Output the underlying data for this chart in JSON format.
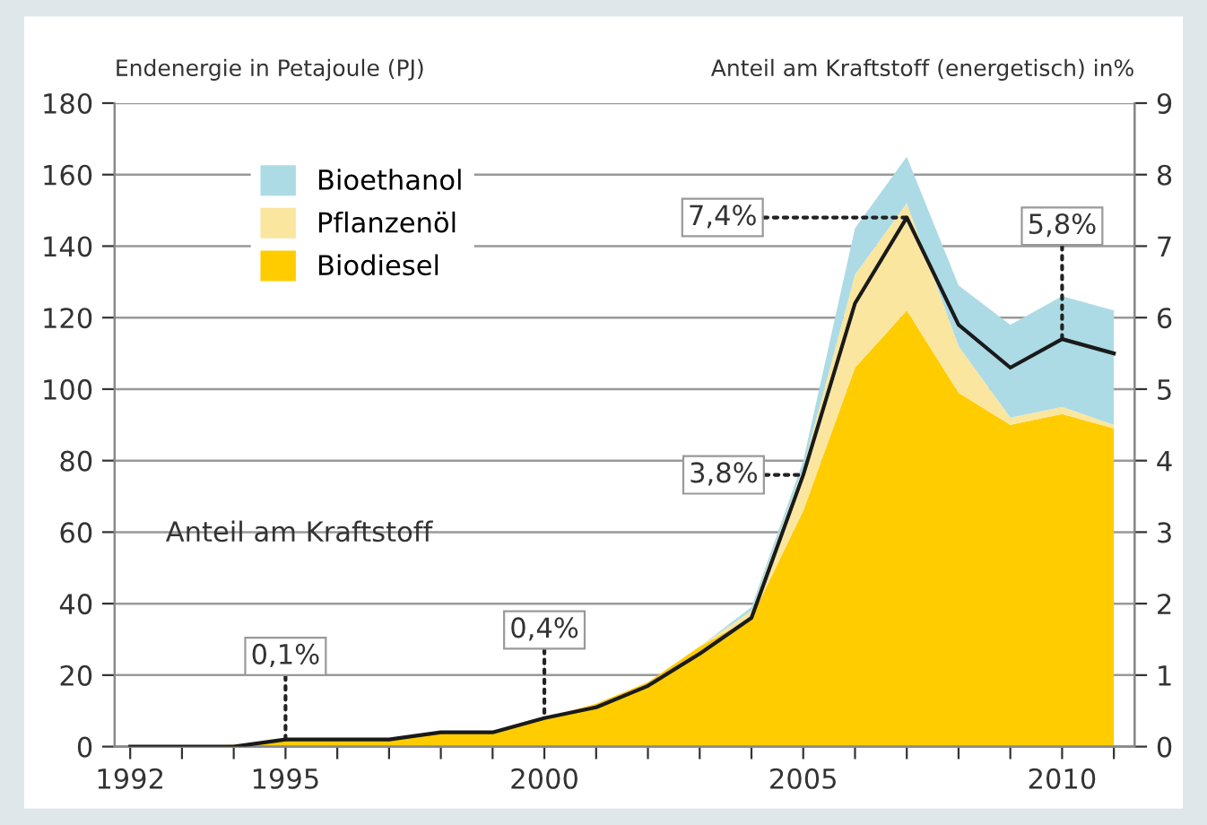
{
  "chart_data": {
    "type": "area",
    "stacked": true,
    "ylabel": "Endenergie in Petajoule (PJ)",
    "y2label": "Anteil am Kraftstoff (energetisch) in%",
    "x": [
      1992,
      1993,
      1994,
      1995,
      1996,
      1997,
      1998,
      1999,
      2000,
      2001,
      2002,
      2003,
      2004,
      2005,
      2006,
      2007,
      2008,
      2009,
      2010,
      2011
    ],
    "series": [
      {
        "name": "Biodiesel",
        "color": "#ffcc00",
        "values": [
          0,
          0,
          0.5,
          2,
          2,
          2,
          4,
          4,
          8,
          12,
          18,
          28,
          36,
          66,
          106,
          122,
          99,
          90,
          93,
          89
        ]
      },
      {
        "name": "Pflanzenöl",
        "color": "#fbe6a0",
        "values": [
          0,
          0,
          0,
          0,
          0,
          0,
          0,
          0,
          0,
          0,
          0,
          0,
          2,
          12,
          26,
          30,
          13,
          2,
          2,
          1
        ]
      },
      {
        "name": "Bioethanol",
        "color": "#acdbe5",
        "values": [
          0,
          0,
          0,
          0,
          0,
          0,
          0,
          0,
          0,
          0,
          0,
          0,
          1,
          2,
          13,
          13,
          17,
          26,
          31,
          32
        ]
      },
      {
        "type": "line",
        "axis": "y2",
        "color": "#1a1a1a",
        "values": [
          0,
          0,
          0,
          0.1,
          0.1,
          0.1,
          0.2,
          0.2,
          0.4,
          0.55,
          0.85,
          1.3,
          1.8,
          3.8,
          6.2,
          7.4,
          5.9,
          5.3,
          5.7,
          5.5
        ]
      }
    ],
    "xlim": [
      1991.7,
      2011.4
    ],
    "xticks": [
      1992,
      {
        "value": 1993,
        "label": null
      },
      {
        "value": 1994,
        "label": null
      },
      1995,
      {
        "value": 1996,
        "label": null
      },
      {
        "value": 1997,
        "label": null
      },
      {
        "value": 1998,
        "label": null
      },
      {
        "value": 1999,
        "label": null
      },
      2000,
      {
        "value": 2001,
        "label": null
      },
      {
        "value": 2002,
        "label": null
      },
      {
        "value": 2003,
        "label": null
      },
      {
        "value": 2004,
        "label": null
      },
      2005,
      {
        "value": 2006,
        "label": null
      },
      {
        "value": 2007,
        "label": null
      },
      {
        "value": 2008,
        "label": null
      },
      {
        "value": 2009,
        "label": null
      },
      2010,
      {
        "value": 2011,
        "label": null
      }
    ],
    "ylim": [
      0,
      180
    ],
    "yticks": [
      0,
      20,
      40,
      60,
      80,
      100,
      120,
      140,
      160,
      180
    ],
    "y2lim": [
      0,
      9
    ],
    "y2ticks": [
      0,
      1,
      2,
      3,
      4,
      5,
      6,
      7,
      8,
      9
    ],
    "grid": "y",
    "legend": "top left",
    "annotations": [
      "Anteil am Kraftstoff",
      {
        "text": "0,1%",
        "x": 1995,
        "y": 2
      },
      {
        "text": "0,4%",
        "x": 2000,
        "y": 8
      },
      {
        "text": "3,8%",
        "x": 2005,
        "y": 76
      },
      {
        "text": "7,4%",
        "x": 2007,
        "y": 148
      },
      {
        "text": "5,8%",
        "x": 2010,
        "y": 114
      }
    ]
  }
}
